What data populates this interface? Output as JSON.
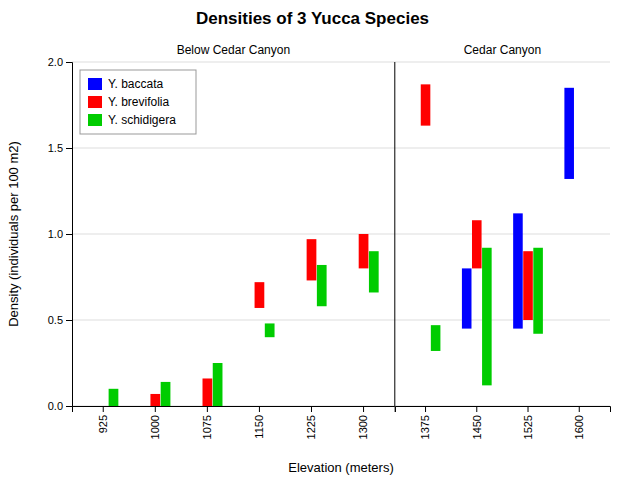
{
  "chart_data": {
    "type": "bar",
    "title": "Densities of 3 Yucca Species",
    "xlabel": "Elevation (meters)",
    "ylabel": "Density (individuals per 100 m2)",
    "ylim": [
      0.0,
      2.0
    ],
    "yticks": [
      {
        "value": 0.0,
        "label": "0.0"
      },
      0.5,
      {
        "value": 1.0,
        "label": "1.0"
      },
      1.5,
      {
        "value": 2.0,
        "label": "2.0"
      }
    ],
    "grid": true,
    "legend": "upper left",
    "panels": [
      {
        "title": "Below Cedar Canyon",
        "categories": [
          "925",
          "1000",
          "1075",
          "1150",
          "1225",
          "1300"
        ]
      },
      {
        "title": "Cedar Canyon",
        "categories": [
          "1375",
          "1450",
          "1525",
          "1600"
        ]
      }
    ],
    "series": [
      {
        "name": "Y. baccata",
        "color": "#0000ff",
        "values": [
          null,
          null,
          null,
          null,
          null,
          null,
          null,
          [
            0.45,
            0.8
          ],
          [
            0.45,
            1.12
          ],
          [
            1.32,
            1.85
          ]
        ]
      },
      {
        "name": "Y. brevifolia",
        "color": "#ff0000",
        "values": [
          null,
          [
            0.0,
            0.07
          ],
          [
            0.0,
            0.16
          ],
          [
            0.57,
            0.72
          ],
          [
            0.73,
            0.97
          ],
          [
            0.8,
            1.0
          ],
          [
            1.63,
            1.87
          ],
          [
            0.8,
            1.08
          ],
          [
            0.5,
            0.9
          ],
          null
        ]
      },
      {
        "name": "Y. schidigera",
        "color": "#00cc00",
        "values": [
          [
            0.0,
            0.1
          ],
          [
            0.0,
            0.14
          ],
          [
            0.0,
            0.25
          ],
          [
            0.4,
            0.48
          ],
          [
            0.58,
            0.82
          ],
          [
            0.66,
            0.9
          ],
          [
            0.32,
            0.47
          ],
          [
            0.12,
            0.92
          ],
          [
            0.42,
            0.92
          ],
          null
        ]
      }
    ]
  }
}
